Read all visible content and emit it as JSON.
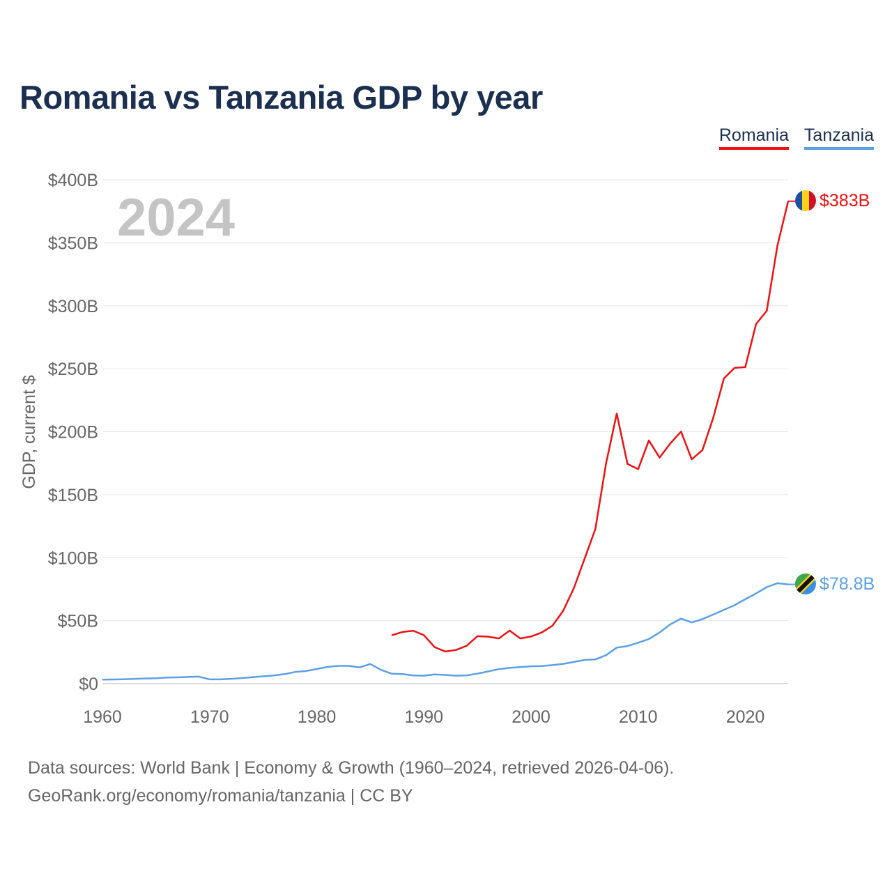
{
  "title": "Romania vs Tanzania GDP by year",
  "legend": [
    {
      "name": "Romania",
      "color": "#ee1111"
    },
    {
      "name": "Tanzania",
      "color": "#5aa0e6"
    }
  ],
  "source_line1": "Data sources: World Bank | Economy & Growth (1960–2024, retrieved 2026-04-06).",
  "source_line2": "GeoRank.org/economy/romania/tanzania | CC BY",
  "chart_data": {
    "type": "line",
    "title": "Romania vs Tanzania GDP by year",
    "xlabel": "",
    "ylabel": "GDP, current $",
    "year_watermark": "2024",
    "xlim": [
      1960,
      2024
    ],
    "ylim": [
      0,
      400
    ],
    "x_ticks": [
      1960,
      1970,
      1980,
      1990,
      2000,
      2010,
      2020
    ],
    "y_ticks": [
      0,
      50,
      100,
      150,
      200,
      250,
      300,
      350,
      400
    ],
    "y_tick_labels": [
      "$0",
      "$50B",
      "$100B",
      "$150B",
      "$200B",
      "$250B",
      "$300B",
      "$350B",
      "$400B"
    ],
    "grid": true,
    "legend_position": "top-right",
    "series": [
      {
        "name": "Romania",
        "color": "#ee1111",
        "end_label": "$383B",
        "x": [
          1987,
          1988,
          1989,
          1990,
          1991,
          1992,
          1993,
          1994,
          1995,
          1996,
          1997,
          1998,
          1999,
          2000,
          2001,
          2002,
          2003,
          2004,
          2005,
          2006,
          2007,
          2008,
          2009,
          2010,
          2011,
          2012,
          2013,
          2014,
          2015,
          2016,
          2017,
          2018,
          2019,
          2020,
          2021,
          2022,
          2023,
          2024
        ],
        "values": [
          38.4,
          41.0,
          42.0,
          38.5,
          29.0,
          25.5,
          26.7,
          30.1,
          37.7,
          37.3,
          35.9,
          42.1,
          35.9,
          37.4,
          40.6,
          46.0,
          57.8,
          75.8,
          99.2,
          122.7,
          174.6,
          214.4,
          174.5,
          170.3,
          193.1,
          179.5,
          190.7,
          200.1,
          178.1,
          185.4,
          210.9,
          242.3,
          250.7,
          251.3,
          285.4,
          296.0,
          347.7,
          383.0
        ]
      },
      {
        "name": "Tanzania",
        "color": "#5aa0e6",
        "end_label": "$78.8B",
        "x": [
          1960,
          1961,
          1962,
          1963,
          1964,
          1965,
          1966,
          1967,
          1968,
          1969,
          1970,
          1971,
          1972,
          1973,
          1974,
          1975,
          1976,
          1977,
          1978,
          1979,
          1980,
          1981,
          1982,
          1983,
          1984,
          1985,
          1986,
          1987,
          1988,
          1989,
          1990,
          1991,
          1992,
          1993,
          1994,
          1995,
          1996,
          1997,
          1998,
          1999,
          2000,
          2001,
          2002,
          2003,
          2004,
          2005,
          2006,
          2007,
          2008,
          2009,
          2010,
          2011,
          2012,
          2013,
          2014,
          2015,
          2016,
          2017,
          2018,
          2019,
          2020,
          2021,
          2022,
          2023,
          2024
        ],
        "values": [
          3.2,
          3.3,
          3.5,
          3.8,
          4.1,
          4.3,
          4.8,
          5.0,
          5.3,
          5.6,
          3.4,
          3.4,
          3.8,
          4.4,
          5.1,
          5.8,
          6.5,
          7.6,
          9.3,
          10.0,
          11.6,
          13.3,
          14.1,
          14.1,
          12.9,
          15.6,
          10.9,
          7.9,
          7.6,
          6.5,
          6.3,
          7.3,
          6.9,
          6.3,
          6.6,
          7.9,
          9.7,
          11.5,
          12.5,
          13.1,
          13.8,
          14.0,
          14.7,
          15.7,
          17.2,
          18.8,
          19.2,
          22.6,
          28.6,
          29.8,
          32.5,
          35.4,
          40.6,
          47.1,
          51.6,
          48.6,
          51.2,
          54.8,
          58.6,
          62.3,
          67.0,
          71.6,
          76.6,
          79.7,
          78.8
        ]
      }
    ]
  }
}
